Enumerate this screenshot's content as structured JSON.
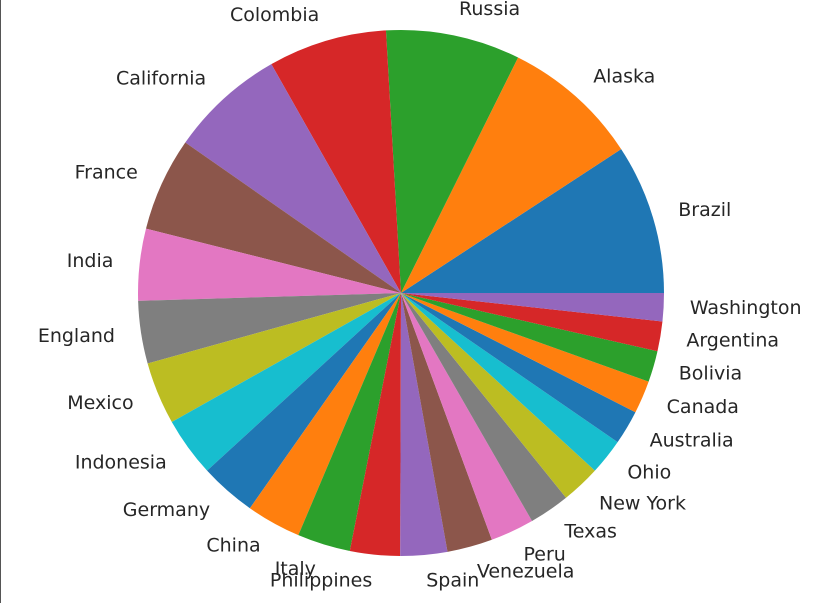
{
  "chart_data": {
    "type": "pie",
    "title": "",
    "start_angle_deg": 0,
    "direction": "counterclockwise",
    "slices": [
      {
        "label": "Brazil",
        "value": 9.6,
        "color": "#1f77b4"
      },
      {
        "label": "Alaska",
        "value": 8.8,
        "color": "#ff7f0e"
      },
      {
        "label": "Russia",
        "value": 8.6,
        "color": "#2ca02c"
      },
      {
        "label": "Colombia",
        "value": 7.6,
        "color": "#d62728"
      },
      {
        "label": "California",
        "value": 7.4,
        "color": "#9467bd"
      },
      {
        "label": "France",
        "value": 6.0,
        "color": "#8c564b"
      },
      {
        "label": "India",
        "value": 4.6,
        "color": "#e377c2"
      },
      {
        "label": "England",
        "value": 4.0,
        "color": "#7f7f7f"
      },
      {
        "label": "Mexico",
        "value": 4.0,
        "color": "#bcbd22"
      },
      {
        "label": "Indonesia",
        "value": 3.8,
        "color": "#17becf"
      },
      {
        "label": "Germany",
        "value": 3.6,
        "color": "#1f77b4"
      },
      {
        "label": "China",
        "value": 3.5,
        "color": "#ff7f0e"
      },
      {
        "label": "Italy",
        "value": 3.4,
        "color": "#2ca02c"
      },
      {
        "label": "Philippines",
        "value": 3.2,
        "color": "#d62728"
      },
      {
        "label": "Spain",
        "value": 3.0,
        "color": "#9467bd"
      },
      {
        "label": "Venezuela",
        "value": 2.9,
        "color": "#8c564b"
      },
      {
        "label": "Peru",
        "value": 2.8,
        "color": "#e377c2"
      },
      {
        "label": "Texas",
        "value": 2.6,
        "color": "#7f7f7f"
      },
      {
        "label": "New York",
        "value": 2.5,
        "color": "#bcbd22"
      },
      {
        "label": "Ohio",
        "value": 2.3,
        "color": "#17becf"
      },
      {
        "label": "Australia",
        "value": 2.2,
        "color": "#1f77b4"
      },
      {
        "label": "Canada",
        "value": 2.1,
        "color": "#ff7f0e"
      },
      {
        "label": "Bolivia",
        "value": 2.0,
        "color": "#2ca02c"
      },
      {
        "label": "Argentina",
        "value": 1.9,
        "color": "#d62728"
      },
      {
        "label": "Washington",
        "value": 1.8,
        "color": "#9467bd"
      }
    ]
  }
}
